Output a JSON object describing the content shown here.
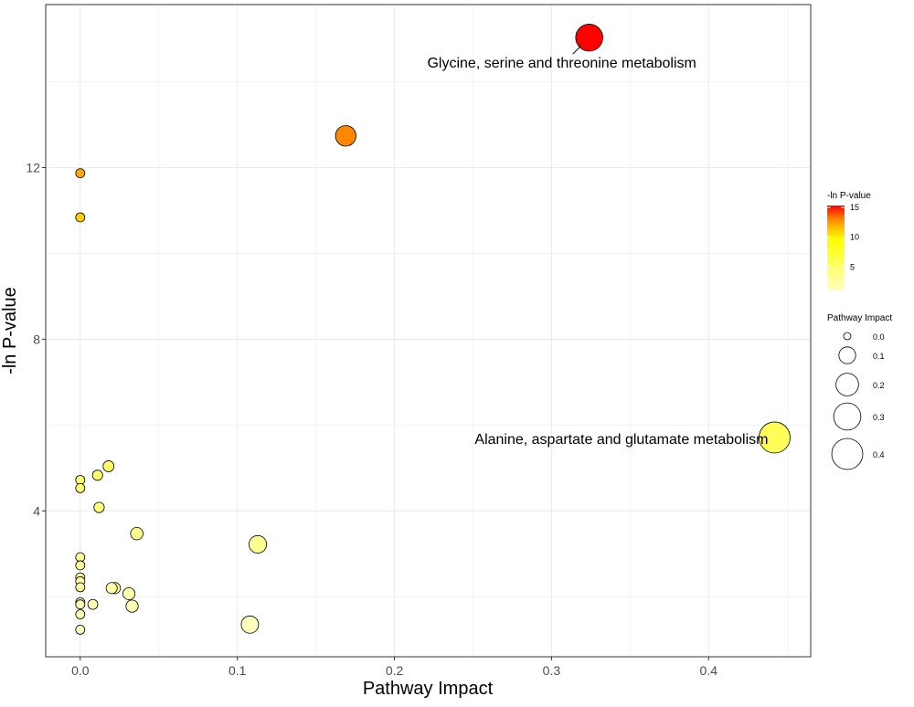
{
  "chart_data": {
    "type": "scatter",
    "title": "",
    "xlabel": "Pathway Impact",
    "ylabel": "-ln P-value",
    "xlim": [
      -0.022,
      0.465
    ],
    "ylim": [
      0.6,
      15.8
    ],
    "x_ticks": [
      0.0,
      0.1,
      0.2,
      0.3,
      0.4
    ],
    "x_tick_labels": [
      "0.0",
      "0.1",
      "0.2",
      "0.3",
      "0.4"
    ],
    "y_ticks": [
      4,
      8,
      12
    ],
    "y_tick_labels": [
      "4",
      "8",
      "12"
    ],
    "grid": true,
    "points": [
      {
        "x": 0.324,
        "y": 15.03
      },
      {
        "x": 0.169,
        "y": 12.74
      },
      {
        "x": 0.0,
        "y": 11.87
      },
      {
        "x": 0.0,
        "y": 10.84
      },
      {
        "x": 0.442,
        "y": 5.71
      },
      {
        "x": 0.018,
        "y": 5.04
      },
      {
        "x": 0.011,
        "y": 4.83
      },
      {
        "x": 0.0,
        "y": 4.72
      },
      {
        "x": 0.0,
        "y": 4.53
      },
      {
        "x": 0.012,
        "y": 4.08
      },
      {
        "x": 0.036,
        "y": 3.47
      },
      {
        "x": 0.113,
        "y": 3.22
      },
      {
        "x": 0.0,
        "y": 2.92
      },
      {
        "x": 0.0,
        "y": 2.73
      },
      {
        "x": 0.0,
        "y": 2.45
      },
      {
        "x": 0.0,
        "y": 2.36
      },
      {
        "x": 0.0,
        "y": 2.22
      },
      {
        "x": 0.02,
        "y": 2.2
      },
      {
        "x": 0.022,
        "y": 2.2
      },
      {
        "x": 0.031,
        "y": 2.07
      },
      {
        "x": 0.0,
        "y": 1.87
      },
      {
        "x": 0.0,
        "y": 1.82
      },
      {
        "x": 0.008,
        "y": 1.82
      },
      {
        "x": 0.033,
        "y": 1.78
      },
      {
        "x": 0.0,
        "y": 1.59
      },
      {
        "x": 0.108,
        "y": 1.35
      },
      {
        "x": 0.0,
        "y": 1.23
      }
    ],
    "annotations": [
      {
        "text": "Glycine, serine and threonine metabolism",
        "x": 0.324,
        "y": 15.03
      },
      {
        "text": "Alanine, aspartate and glutamate metabolism",
        "x": 0.442,
        "y": 5.71
      }
    ],
    "color_legend": {
      "title": "-ln P-value",
      "ticks": [
        5,
        10,
        15
      ],
      "tick_labels": [
        "5",
        "10",
        "15"
      ],
      "range": [
        1.2,
        15.03
      ],
      "colors": [
        "#ffffc0",
        "#ffff00",
        "#ff8c00",
        "#ff0000"
      ],
      "placement": "right"
    },
    "size_legend": {
      "title": "Pathway Impact",
      "values": [
        0.0,
        0.1,
        0.2,
        0.3,
        0.4
      ],
      "labels": [
        "0.0",
        "0.1",
        "0.2",
        "0.3",
        "0.4"
      ],
      "placement": "right"
    }
  }
}
